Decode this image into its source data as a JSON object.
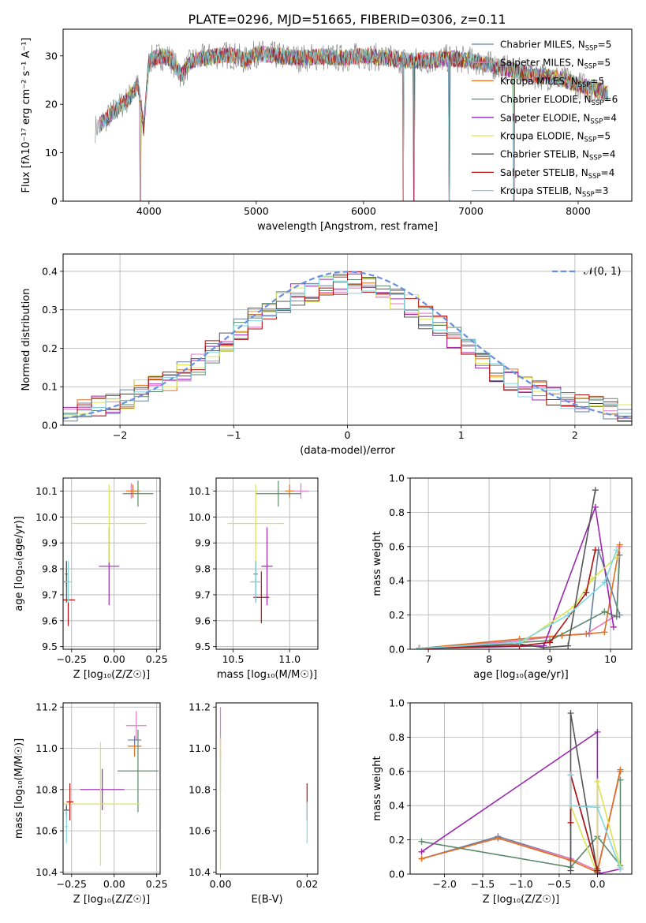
{
  "figure_title": "PLATE=0296, MJD=51665, FIBERID=0306, z=0.11",
  "chart_data": [
    {
      "id": "spectrum",
      "type": "line",
      "title": "PLATE=0296, MJD=51665, FIBERID=0306, z=0.11",
      "xlabel": "wavelength [Angstrom, rest frame]",
      "ylabel": "Flux [fλ10⁻¹⁷ erg cm⁻² s⁻¹ A⁻¹]",
      "xlim": [
        3200,
        8500
      ],
      "ylim": [
        0,
        35.5
      ],
      "xticks": [
        4000,
        5000,
        6000,
        7000,
        8000
      ],
      "yticks": [
        0,
        10,
        20,
        30
      ],
      "grid": false,
      "legend_position": "right",
      "series": [
        {
          "name": "Chabrier MILES, N",
          "sub": "SSP",
          "suffix": "=5",
          "color": "#6a7fa0"
        },
        {
          "name": "Salpeter MILES, N",
          "sub": "SSP",
          "suffix": "=5",
          "color": "#e377c2"
        },
        {
          "name": "Kroupa MILES, N",
          "sub": "SSP",
          "suffix": "=5",
          "color": "#e07020"
        },
        {
          "name": "Chabrier ELODIE, N",
          "sub": "SSP",
          "suffix": "=6",
          "color": "#5b8a6b"
        },
        {
          "name": "Salpeter ELODIE, N",
          "sub": "SSP",
          "suffix": "=4",
          "color": "#9b27b0"
        },
        {
          "name": "Kroupa ELODIE, N",
          "sub": "SSP",
          "suffix": "=5",
          "color": "#d8e650"
        },
        {
          "name": "Chabrier STELIB, N",
          "sub": "SSP",
          "suffix": "=4",
          "color": "#555555"
        },
        {
          "name": "Salpeter STELIB, N",
          "sub": "SSP",
          "suffix": "=4",
          "color": "#b01010"
        },
        {
          "name": "Kroupa STELIB, N",
          "sub": "SSP",
          "suffix": "=3",
          "color": "#80d8e0"
        }
      ],
      "data_color": "#808080",
      "envelope": {
        "x": [
          3500,
          3600,
          3700,
          3800,
          3900,
          3950,
          4000,
          4100,
          4200,
          4300,
          4400,
          4500,
          4600,
          4700,
          4800,
          4900,
          5000,
          5200,
          5400,
          5600,
          5800,
          6000,
          6200,
          6400,
          6600,
          6800,
          7000,
          7200,
          7400,
          7600,
          7800,
          8000,
          8200,
          8300
        ],
        "y": [
          15,
          17,
          19,
          21,
          24,
          15,
          29,
          30,
          29.5,
          26,
          29,
          29.5,
          30,
          30.2,
          30,
          29,
          30.5,
          30,
          29.5,
          29.8,
          29.5,
          30,
          29.5,
          29,
          29,
          29.5,
          29,
          28,
          27,
          26,
          25.5,
          24,
          23,
          22
        ]
      },
      "dropouts": [
        3520,
        3920,
        6370,
        6470,
        6800,
        7400
      ]
    },
    {
      "id": "residuals",
      "type": "histogram",
      "xlabel": "(data-model)/error",
      "ylabel": "Normed distribution",
      "xlim": [
        -2.5,
        2.5
      ],
      "ylim": [
        0,
        0.445
      ],
      "xticks": [
        -2,
        -1,
        0,
        1,
        2
      ],
      "yticks": [
        0.0,
        0.1,
        0.2,
        0.3,
        0.4
      ],
      "grid": true,
      "legend_position": "top-right",
      "legend_label": "𝒩(0, 1)",
      "reference_color": "#6a8fe0",
      "hist_envelope": [
        0.03,
        0.04,
        0.05,
        0.06,
        0.07,
        0.09,
        0.1,
        0.12,
        0.14,
        0.16,
        0.19,
        0.22,
        0.25,
        0.28,
        0.3,
        0.32,
        0.34,
        0.35,
        0.36,
        0.37,
        0.37,
        0.36,
        0.35,
        0.33,
        0.31,
        0.28,
        0.26,
        0.23,
        0.2,
        0.17,
        0.14,
        0.12,
        0.1,
        0.09,
        0.08,
        0.07,
        0.06,
        0.05,
        0.04,
        0.035
      ]
    },
    {
      "id": "z-age",
      "type": "errorbar",
      "xlabel": "Z [log₁₀(Z/Z☉)]",
      "ylabel": "age  [log₁₀(age/yr)]",
      "xlim": [
        -0.3,
        0.27
      ],
      "ylim": [
        9.49,
        10.15
      ],
      "xticks": [
        -0.25,
        0.0,
        0.25
      ],
      "xticklabels": [
        "−0.25",
        "0.00",
        "0.25"
      ],
      "yticks": [
        9.5,
        9.6,
        9.7,
        9.8,
        9.9,
        10.0,
        10.1
      ],
      "grid": true,
      "points": [
        {
          "x": -0.28,
          "y": 9.78,
          "xerr": 0.01,
          "yerr": 0.05,
          "color": "#6a7fa0"
        },
        {
          "x": 0.1,
          "y": 10.1,
          "xerr": 0.03,
          "yerr": 0.03,
          "color": "#e377c2"
        },
        {
          "x": 0.11,
          "y": 10.1,
          "xerr": 0.04,
          "yerr": 0.025,
          "color": "#e07020"
        },
        {
          "x": 0.14,
          "y": 10.09,
          "xerr": 0.09,
          "yerr": 0.05,
          "color": "#5b8a6b"
        },
        {
          "x": -0.03,
          "y": 9.81,
          "xerr": 0.06,
          "yerr": 0.15,
          "color": "#9b27b0"
        },
        {
          "x": -0.03,
          "y": 9.975,
          "xerr": 0.22,
          "yerr": 0.15,
          "color": "#d8e650"
        },
        {
          "x": -0.28,
          "y": 9.75,
          "xerr": 0.015,
          "yerr": 0.08,
          "color": "#555555"
        },
        {
          "x": -0.27,
          "y": 9.68,
          "xerr": 0.04,
          "yerr": 0.1,
          "color": "#b01010"
        },
        {
          "x": -0.27,
          "y": 9.75,
          "xerr": 0.02,
          "yerr": 0.08,
          "color": "#80d8e0"
        }
      ]
    },
    {
      "id": "mass-age",
      "type": "errorbar",
      "xlabel": "mass [log₁₀(M/M☉)]",
      "ylabel": "",
      "xlim": [
        10.35,
        11.25
      ],
      "ylim": [
        9.49,
        10.15
      ],
      "xticks": [
        10.5,
        11.0
      ],
      "xticklabels": [
        "10.5",
        "11.0"
      ],
      "yticks": [
        9.5,
        9.6,
        9.7,
        9.8,
        9.9,
        10.0,
        10.1
      ],
      "grid": true,
      "points": [
        {
          "x": 10.7,
          "y": 9.78,
          "xerr": 0.02,
          "yerr": 0.05,
          "color": "#6a7fa0"
        },
        {
          "x": 11.1,
          "y": 10.1,
          "xerr": 0.07,
          "yerr": 0.03,
          "color": "#e377c2"
        },
        {
          "x": 11.0,
          "y": 10.1,
          "xerr": 0.04,
          "yerr": 0.025,
          "color": "#e07020"
        },
        {
          "x": 10.9,
          "y": 10.09,
          "xerr": 0.2,
          "yerr": 0.05,
          "color": "#5b8a6b"
        },
        {
          "x": 10.8,
          "y": 9.81,
          "xerr": 0.05,
          "yerr": 0.15,
          "color": "#9b27b0"
        },
        {
          "x": 10.7,
          "y": 9.975,
          "xerr": 0.25,
          "yerr": 0.15,
          "color": "#d8e650"
        },
        {
          "x": 10.7,
          "y": 9.75,
          "xerr": 0.04,
          "yerr": 0.08,
          "color": "#555555"
        },
        {
          "x": 10.75,
          "y": 9.69,
          "xerr": 0.07,
          "yerr": 0.1,
          "color": "#b01010"
        },
        {
          "x": 10.7,
          "y": 9.75,
          "xerr": 0.05,
          "yerr": 0.08,
          "color": "#80d8e0"
        }
      ]
    },
    {
      "id": "age-weight",
      "type": "line",
      "xlabel": "age  [log₁₀(age/yr)]",
      "ylabel": "mass weight",
      "xlim": [
        6.7,
        10.35
      ],
      "ylim": [
        0,
        1.0
      ],
      "xticks": [
        7,
        8,
        9,
        10
      ],
      "xticklabels": [
        "7",
        "8",
        "9",
        "10"
      ],
      "yticks": [
        0.0,
        0.2,
        0.4,
        0.6,
        0.8,
        1.0
      ],
      "grid": true,
      "series": [
        {
          "color": "#6a7fa0",
          "x": [
            6.85,
            8.5,
            9.2,
            9.65,
            9.8,
            10.15
          ],
          "y": [
            0.005,
            0.05,
            0.08,
            0.09,
            0.58,
            0.2
          ]
        },
        {
          "color": "#e377c2",
          "x": [
            6.85,
            8.5,
            9.2,
            9.6,
            10.1,
            10.15
          ],
          "y": [
            0.005,
            0.05,
            0.08,
            0.09,
            0.2,
            0.6
          ]
        },
        {
          "color": "#e07020",
          "x": [
            6.85,
            8.5,
            9.2,
            9.6,
            9.9,
            10.15
          ],
          "y": [
            0.005,
            0.06,
            0.08,
            0.09,
            0.1,
            0.61
          ]
        },
        {
          "color": "#5b8a6b",
          "x": [
            6.85,
            8.5,
            9.0,
            9.9,
            10.1,
            10.15
          ],
          "y": [
            0.005,
            0.04,
            0.05,
            0.22,
            0.19,
            0.55
          ]
        },
        {
          "color": "#9b27b0",
          "x": [
            6.85,
            8.9,
            9.75,
            10.05
          ],
          "y": [
            0.005,
            0.02,
            0.83,
            0.13
          ]
        },
        {
          "color": "#d8e650",
          "x": [
            6.85,
            8.5,
            9.4,
            9.7,
            10.1
          ],
          "y": [
            0.005,
            0.03,
            0.25,
            0.41,
            0.54
          ]
        },
        {
          "color": "#555555",
          "x": [
            6.85,
            8.5,
            8.9,
            9.3,
            9.75
          ],
          "y": [
            0.005,
            0.03,
            0.01,
            0.02,
            0.93
          ]
        },
        {
          "color": "#b01010",
          "x": [
            6.85,
            8.5,
            9.0,
            9.6,
            9.75
          ],
          "y": [
            0.005,
            0.02,
            0.04,
            0.33,
            0.58
          ]
        },
        {
          "color": "#80d8e0",
          "x": [
            6.85,
            8.5,
            9.3,
            9.9,
            10.1
          ],
          "y": [
            0.005,
            0.04,
            0.2,
            0.39,
            0.58
          ]
        }
      ]
    },
    {
      "id": "z-mass",
      "type": "errorbar",
      "xlabel": "Z [log₁₀(Z/Z☉)]",
      "ylabel": "mass [log₁₀(M/M☉)]",
      "xlim": [
        -0.3,
        0.27
      ],
      "ylim": [
        10.39,
        11.22
      ],
      "xticks": [
        -0.25,
        0.0,
        0.25
      ],
      "xticklabels": [
        "−0.25",
        "0.00",
        "0.25"
      ],
      "yticks": [
        10.4,
        10.6,
        10.8,
        11.0,
        11.2
      ],
      "yticklabels": [
        "10.4",
        "10.6",
        "10.8",
        "11.0",
        "11.2"
      ],
      "grid": true,
      "points": [
        {
          "x": -0.28,
          "y": 10.7,
          "xerr": 0.015,
          "yerr": 0.03,
          "color": "#6a7fa0"
        },
        {
          "x": 0.13,
          "y": 11.11,
          "xerr": 0.06,
          "yerr": 0.07,
          "color": "#e377c2"
        },
        {
          "x": 0.12,
          "y": 11.01,
          "xerr": 0.04,
          "yerr": 0.05,
          "color": "#e07020"
        },
        {
          "x": 0.14,
          "y": 10.89,
          "xerr": 0.12,
          "yerr": 0.2,
          "color": "#5b8a6b"
        },
        {
          "x": -0.07,
          "y": 10.8,
          "xerr": 0.13,
          "yerr": 0.1,
          "color": "#9b27b0"
        },
        {
          "x": -0.08,
          "y": 10.73,
          "xerr": 0.23,
          "yerr": 0.3,
          "color": "#d8e650"
        },
        {
          "x": -0.28,
          "y": 10.7,
          "xerr": 0.015,
          "yerr": 0.02,
          "color": "#555555"
        },
        {
          "x": -0.26,
          "y": 10.74,
          "xerr": 0.02,
          "yerr": 0.09,
          "color": "#b01010"
        },
        {
          "x": -0.28,
          "y": 10.62,
          "xerr": 0.01,
          "yerr": 0.08,
          "color": "#80d8e0"
        },
        {
          "x": 0.12,
          "y": 11.04,
          "xerr": 0.04,
          "yerr": 0.02,
          "color": "#6a7fa0"
        }
      ]
    },
    {
      "id": "ebv-mass",
      "type": "errorbar",
      "xlabel": "E(B-V)",
      "ylabel": "",
      "xlim": [
        -0.001,
        0.0225
      ],
      "ylim": [
        10.39,
        11.22
      ],
      "xticks": [
        0.0,
        0.02
      ],
      "xticklabels": [
        "0.00",
        "0.02"
      ],
      "yticks": [
        10.4,
        10.6,
        10.8,
        11.0,
        11.2
      ],
      "yticklabels": [
        "10.4",
        "10.6",
        "10.8",
        "11.0",
        "11.2"
      ],
      "grid": false,
      "points": [
        {
          "x": 0.0,
          "y": 11.11,
          "xerr": 0,
          "yerr": 0.09,
          "color": "#e377c2"
        },
        {
          "x": 0.0,
          "y": 11.0,
          "xerr": 0,
          "yerr": 0.05,
          "color": "#e07020"
        },
        {
          "x": 0.0,
          "y": 10.89,
          "xerr": 0,
          "yerr": 0.1,
          "color": "#5b8a6b"
        },
        {
          "x": 0.0,
          "y": 10.73,
          "xerr": 0,
          "yerr": 0.32,
          "color": "#d8e650"
        },
        {
          "x": 0.02,
          "y": 10.74,
          "xerr": 0,
          "yerr": 0.09,
          "color": "#b01010"
        },
        {
          "x": 0.02,
          "y": 10.64,
          "xerr": 0,
          "yerr": 0.1,
          "color": "#80d8e0"
        }
      ]
    },
    {
      "id": "z-weight",
      "type": "line",
      "xlabel": "Z [log₁₀(Z/Z☉)]",
      "ylabel": "mass weight",
      "xlim": [
        -2.45,
        0.45
      ],
      "ylim": [
        0,
        1.0
      ],
      "xticks": [
        -2.0,
        -1.5,
        -1.0,
        -0.5,
        0.0
      ],
      "xticklabels": [
        "−2.0",
        "−1.5",
        "−1.0",
        "−0.5",
        "0.0"
      ],
      "yticks": [
        0.0,
        0.2,
        0.4,
        0.6,
        0.8,
        1.0
      ],
      "grid": true,
      "series": [
        {
          "color": "#6a7fa0",
          "x": [
            -2.3,
            -1.3,
            -0.35,
            -0.35,
            0.0,
            0.3
          ],
          "y": [
            0.09,
            0.22,
            0.09,
            0.58,
            0.02,
            0.6
          ]
        },
        {
          "color": "#e377c2",
          "x": [
            -2.3,
            -1.3,
            -0.35,
            0.0,
            0.3
          ],
          "y": [
            0.09,
            0.21,
            0.09,
            0.02,
            0.6
          ]
        },
        {
          "color": "#e07020",
          "x": [
            -2.3,
            -1.3,
            -0.35,
            0.0,
            0.3,
            0.3
          ],
          "y": [
            0.09,
            0.21,
            0.08,
            0.01,
            0.61,
            0.6
          ]
        },
        {
          "color": "#5b8a6b",
          "x": [
            -2.3,
            -0.35,
            0.0,
            0.3,
            0.3
          ],
          "y": [
            0.19,
            0.04,
            0.22,
            0.05,
            0.55
          ]
        },
        {
          "color": "#9b27b0",
          "x": [
            -2.3,
            0.0,
            0.0,
            0.3
          ],
          "y": [
            0.13,
            0.83,
            0.0,
            0.03
          ]
        },
        {
          "color": "#d8e650",
          "x": [
            -0.35,
            0.0,
            0.0,
            0.3
          ],
          "y": [
            0.4,
            0.0,
            0.54,
            0.04
          ]
        },
        {
          "color": "#555555",
          "x": [
            -0.35,
            -0.35,
            0.0,
            0.0
          ],
          "y": [
            0.02,
            0.94,
            0.01,
            0.03
          ]
        },
        {
          "color": "#b01010",
          "x": [
            -0.35,
            -0.35,
            0.0,
            0.0
          ],
          "y": [
            0.3,
            0.58,
            0.02,
            0.02
          ]
        },
        {
          "color": "#80d8e0",
          "x": [
            -0.35,
            -0.35,
            0.0,
            0.3
          ],
          "y": [
            0.58,
            0.4,
            0.39,
            0.03
          ]
        }
      ]
    }
  ]
}
